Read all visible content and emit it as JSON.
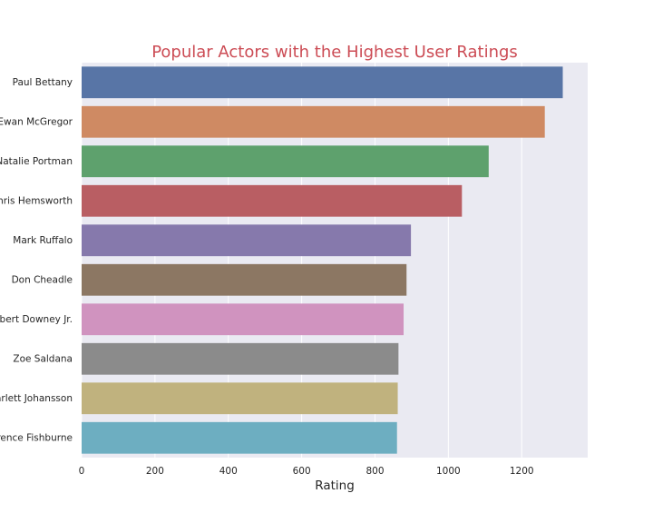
{
  "chart_data": {
    "type": "bar",
    "orientation": "horizontal",
    "title": "Popular Actors with the Highest User Ratings",
    "xlabel": "Rating",
    "ylabel": "",
    "xlim": [
      0,
      1380
    ],
    "xticks": [
      0,
      200,
      400,
      600,
      800,
      1000,
      1200
    ],
    "grid": true,
    "categories": [
      "Paul Bettany",
      "Ewan McGregor",
      "Natalie Portman",
      "Chris Hemsworth",
      "Mark Ruffalo",
      "Don Cheadle",
      "Robert Downey Jr.",
      "Zoe Saldana",
      "Scarlett Johansson",
      "Laurence Fishburne"
    ],
    "values": [
      1312,
      1263,
      1110,
      1037,
      898,
      886,
      878,
      864,
      862,
      860
    ],
    "colors": [
      "#5875a6",
      "#cf8a63",
      "#5ea16d",
      "#b95e63",
      "#8679ac",
      "#8c7763",
      "#d093bf",
      "#8b8b8b",
      "#c0b27e",
      "#6daec1"
    ]
  },
  "style": {
    "plot_background": "#eaeaf2",
    "grid_color": "#ffffff",
    "title_color": "#cc4c55"
  }
}
